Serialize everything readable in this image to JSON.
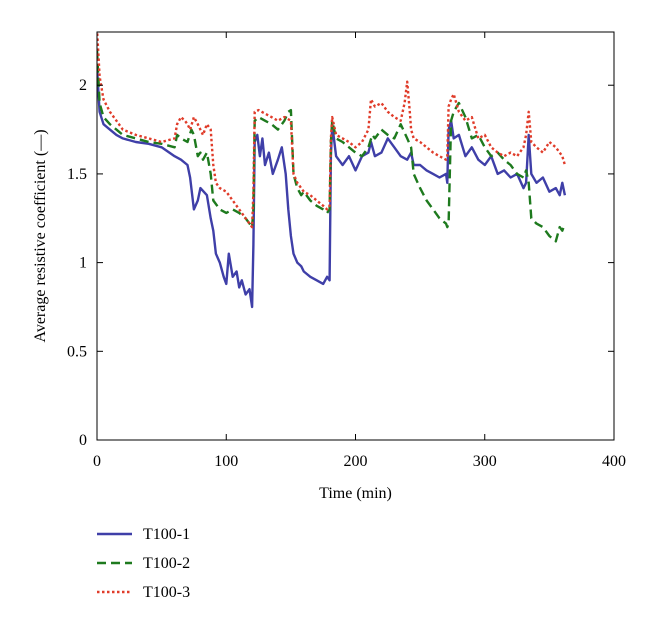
{
  "chart_data": {
    "type": "line",
    "title": "",
    "xlabel": "Time (min)",
    "ylabel": "Average resistive coefficient (—)",
    "xlim": [
      0,
      400
    ],
    "ylim": [
      0,
      2.3
    ],
    "xticks": [
      0,
      100,
      200,
      300,
      400
    ],
    "yticks": [
      0,
      0.5,
      1,
      1.5,
      2
    ],
    "xtick_labels": [
      "0",
      "100",
      "200",
      "300",
      "400"
    ],
    "ytick_labels": [
      "0",
      "0.5",
      "1",
      "1.5",
      "2"
    ],
    "grid": false,
    "legend_position": "below-left",
    "series": [
      {
        "name": "T100-1",
        "color": "#3f3fa8",
        "style": "solid",
        "x": [
          0,
          2,
          5,
          10,
          15,
          20,
          30,
          40,
          50,
          60,
          65,
          70,
          72,
          75,
          78,
          80,
          85,
          88,
          90,
          92,
          95,
          98,
          100,
          102,
          105,
          108,
          110,
          112,
          115,
          118,
          120,
          121,
          122,
          124,
          126,
          128,
          130,
          133,
          136,
          140,
          143,
          146,
          148,
          150,
          152,
          155,
          158,
          160,
          165,
          170,
          175,
          178,
          180,
          181,
          182,
          185,
          190,
          195,
          200,
          205,
          210,
          212,
          215,
          220,
          225,
          230,
          235,
          240,
          243,
          245,
          250,
          255,
          260,
          265,
          270,
          271,
          272,
          274,
          276,
          280,
          285,
          290,
          295,
          300,
          305,
          310,
          315,
          320,
          325,
          330,
          332,
          334,
          336,
          340,
          345,
          350,
          355,
          358,
          360,
          362
        ],
        "y": [
          2.1,
          1.85,
          1.78,
          1.75,
          1.72,
          1.7,
          1.68,
          1.67,
          1.65,
          1.6,
          1.58,
          1.55,
          1.48,
          1.3,
          1.35,
          1.42,
          1.38,
          1.25,
          1.18,
          1.05,
          1.0,
          0.92,
          0.88,
          1.05,
          0.92,
          0.95,
          0.86,
          0.9,
          0.82,
          0.85,
          0.75,
          1.1,
          1.68,
          1.72,
          1.6,
          1.7,
          1.55,
          1.62,
          1.5,
          1.58,
          1.65,
          1.5,
          1.3,
          1.15,
          1.05,
          1.0,
          0.98,
          0.95,
          0.92,
          0.9,
          0.88,
          0.92,
          0.9,
          1.6,
          1.78,
          1.6,
          1.55,
          1.6,
          1.52,
          1.6,
          1.62,
          1.68,
          1.6,
          1.62,
          1.7,
          1.65,
          1.6,
          1.58,
          1.62,
          1.55,
          1.55,
          1.52,
          1.5,
          1.48,
          1.5,
          1.45,
          1.75,
          1.8,
          1.7,
          1.72,
          1.6,
          1.65,
          1.58,
          1.55,
          1.6,
          1.5,
          1.52,
          1.48,
          1.5,
          1.42,
          1.45,
          1.72,
          1.5,
          1.45,
          1.48,
          1.4,
          1.42,
          1.38,
          1.45,
          1.38
        ]
      },
      {
        "name": "T100-2",
        "color": "#1e7a1e",
        "style": "dashed",
        "x": [
          0,
          2,
          5,
          10,
          15,
          20,
          30,
          40,
          50,
          60,
          62,
          65,
          70,
          73,
          75,
          78,
          80,
          82,
          85,
          88,
          90,
          95,
          100,
          105,
          110,
          115,
          118,
          120,
          121,
          122,
          125,
          130,
          135,
          140,
          145,
          148,
          150,
          152,
          155,
          158,
          160,
          165,
          170,
          175,
          178,
          180,
          181,
          182,
          185,
          190,
          195,
          200,
          205,
          210,
          213,
          215,
          220,
          225,
          230,
          235,
          240,
          243,
          245,
          250,
          255,
          260,
          265,
          270,
          271,
          272,
          274,
          276,
          280,
          285,
          290,
          295,
          300,
          305,
          310,
          315,
          320,
          325,
          330,
          332,
          334,
          336,
          340,
          345,
          350,
          355,
          358,
          360,
          362
        ],
        "y": [
          2.2,
          1.9,
          1.82,
          1.78,
          1.75,
          1.72,
          1.7,
          1.68,
          1.67,
          1.65,
          1.72,
          1.7,
          1.68,
          1.75,
          1.72,
          1.6,
          1.62,
          1.58,
          1.62,
          1.5,
          1.35,
          1.3,
          1.28,
          1.3,
          1.28,
          1.25,
          1.22,
          1.2,
          1.3,
          1.8,
          1.82,
          1.8,
          1.78,
          1.75,
          1.8,
          1.85,
          1.86,
          1.5,
          1.42,
          1.38,
          1.4,
          1.35,
          1.32,
          1.3,
          1.28,
          1.3,
          1.68,
          1.8,
          1.7,
          1.68,
          1.65,
          1.62,
          1.6,
          1.65,
          1.72,
          1.7,
          1.75,
          1.72,
          1.7,
          1.78,
          1.7,
          1.65,
          1.5,
          1.42,
          1.35,
          1.3,
          1.25,
          1.22,
          1.2,
          1.22,
          1.8,
          1.85,
          1.9,
          1.82,
          1.7,
          1.72,
          1.65,
          1.6,
          1.62,
          1.58,
          1.55,
          1.5,
          1.48,
          1.52,
          1.45,
          1.25,
          1.22,
          1.2,
          1.15,
          1.12,
          1.2,
          1.18,
          1.22
        ]
      },
      {
        "name": "T100-3",
        "color": "#e03c2a",
        "style": "dotted",
        "x": [
          0,
          2,
          5,
          10,
          15,
          20,
          30,
          40,
          50,
          60,
          62,
          65,
          68,
          70,
          72,
          75,
          78,
          80,
          82,
          85,
          88,
          90,
          92,
          95,
          100,
          105,
          110,
          115,
          118,
          120,
          121,
          122,
          125,
          130,
          135,
          140,
          145,
          150,
          152,
          155,
          158,
          160,
          165,
          170,
          175,
          178,
          180,
          181,
          182,
          185,
          190,
          195,
          200,
          205,
          210,
          212,
          215,
          220,
          225,
          230,
          235,
          238,
          240,
          242,
          243,
          245,
          250,
          255,
          260,
          265,
          270,
          271,
          272,
          274,
          276,
          280,
          285,
          290,
          295,
          300,
          305,
          310,
          315,
          320,
          325,
          330,
          332,
          334,
          336,
          340,
          345,
          350,
          355,
          358,
          360,
          362
        ],
        "y": [
          2.32,
          2.05,
          1.92,
          1.85,
          1.8,
          1.75,
          1.72,
          1.7,
          1.68,
          1.7,
          1.78,
          1.82,
          1.8,
          1.78,
          1.75,
          1.82,
          1.78,
          1.75,
          1.72,
          1.78,
          1.75,
          1.55,
          1.45,
          1.42,
          1.4,
          1.35,
          1.3,
          1.25,
          1.22,
          1.2,
          1.4,
          1.85,
          1.86,
          1.84,
          1.82,
          1.8,
          1.82,
          1.8,
          1.5,
          1.45,
          1.42,
          1.4,
          1.38,
          1.35,
          1.32,
          1.3,
          1.32,
          1.7,
          1.82,
          1.72,
          1.7,
          1.68,
          1.65,
          1.68,
          1.75,
          1.92,
          1.88,
          1.9,
          1.85,
          1.82,
          1.8,
          1.9,
          2.02,
          1.85,
          1.75,
          1.7,
          1.68,
          1.65,
          1.62,
          1.6,
          1.58,
          1.6,
          1.88,
          1.92,
          1.95,
          1.85,
          1.8,
          1.82,
          1.7,
          1.72,
          1.65,
          1.62,
          1.6,
          1.62,
          1.6,
          1.65,
          1.72,
          1.85,
          1.68,
          1.65,
          1.62,
          1.68,
          1.65,
          1.62,
          1.6,
          1.55
        ]
      }
    ]
  }
}
